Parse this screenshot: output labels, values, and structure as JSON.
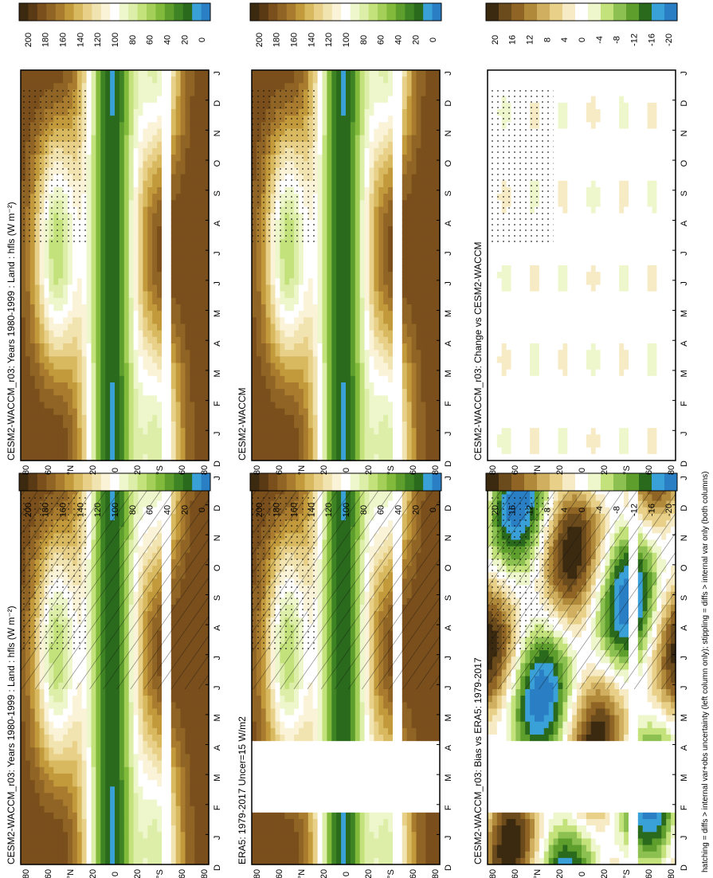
{
  "footnote": "hatching = diffs > internal var+obs uncertainty (left column only); stippling = diffs > internal var only (both columns)",
  "colors": {
    "abs_scale": [
      "#3b2a10",
      "#5a3a14",
      "#7a4f1c",
      "#8f6424",
      "#a87b2e",
      "#c29a3c",
      "#d8b960",
      "#e8d088",
      "#f2e4b0",
      "#faf3d8",
      "#ffffff",
      "#eef6cc",
      "#dceea8",
      "#c4e27c",
      "#a4d05a",
      "#82bb3c",
      "#5e9e2c",
      "#3f8424",
      "#2a6a1c",
      "#3aa0d8",
      "#2a7ec4"
    ],
    "diff_scale": [
      "#3b2a10",
      "#6b4a1c",
      "#8f6424",
      "#b08a3a",
      "#d0b060",
      "#e8d088",
      "#f6ebc4",
      "#ffffff",
      "#eef6cc",
      "#c4e27c",
      "#8cc050",
      "#5e9e2c",
      "#2a6a1c",
      "#3aa0d8",
      "#2a7ec4"
    ]
  },
  "chart_data": [
    {
      "id": "panel-left-top",
      "type": "heatmap",
      "title": "CESM2-WACCM_r03: Years 1980-1999 : Land : hfls (W m⁻²)",
      "x": [
        "D",
        "J",
        "F",
        "M",
        "A",
        "M",
        "J",
        "J",
        "A",
        "S",
        "O",
        "N",
        "D",
        "J"
      ],
      "y_ticks": [
        "80",
        "60",
        "°N",
        "20",
        "0",
        "20",
        "°S",
        "60",
        "80"
      ],
      "colorbar": {
        "ticks": [
          "0",
          "20",
          "40",
          "60",
          "80",
          "100",
          "120",
          "140",
          "160",
          "180",
          "200"
        ]
      },
      "hatched": true,
      "stippled": true
    },
    {
      "id": "panel-right-top",
      "type": "heatmap",
      "title": "CESM2-WACCM_r03: Years 1980-1999 : Land : hfls (W m⁻²)",
      "x": [
        "D",
        "J",
        "F",
        "M",
        "A",
        "M",
        "J",
        "J",
        "A",
        "S",
        "O",
        "N",
        "D",
        "J"
      ],
      "y_ticks": [
        "80",
        "60",
        "°N",
        "20",
        "0",
        "20",
        "°S",
        "60",
        "80"
      ],
      "colorbar": {
        "ticks": [
          "0",
          "20",
          "40",
          "60",
          "80",
          "100",
          "120",
          "140",
          "160",
          "180",
          "200"
        ]
      },
      "stippled": true
    },
    {
      "id": "panel-left-middle",
      "type": "heatmap",
      "title": "ERA5: 1979-2017 Uncer=15 W/m2",
      "x": [
        "D",
        "J",
        "F",
        "M",
        "A",
        "M",
        "J",
        "J",
        "A",
        "S",
        "O",
        "N",
        "D",
        "J"
      ],
      "y_ticks": [
        "80",
        "60",
        "°N",
        "20",
        "0",
        "20",
        "°S",
        "60",
        "80"
      ],
      "colorbar": {
        "ticks": [
          "0",
          "20",
          "40",
          "60",
          "80",
          "100",
          "120",
          "140",
          "160",
          "180",
          "200"
        ]
      },
      "missing_months": [
        "F",
        "M",
        "A"
      ],
      "hatched": true,
      "stippled": true
    },
    {
      "id": "panel-right-middle",
      "type": "heatmap",
      "title": "CESM2-WACCM",
      "x": [
        "D",
        "J",
        "F",
        "M",
        "A",
        "M",
        "J",
        "J",
        "A",
        "S",
        "O",
        "N",
        "D",
        "J"
      ],
      "y_ticks": [
        "80",
        "60",
        "°N",
        "20",
        "0",
        "20",
        "°S",
        "60",
        "80"
      ],
      "colorbar": {
        "ticks": [
          "0",
          "20",
          "40",
          "60",
          "80",
          "100",
          "120",
          "140",
          "160",
          "180",
          "200"
        ]
      },
      "stippled": true
    },
    {
      "id": "panel-left-bottom",
      "type": "heatmap",
      "title": "CESM2-WACCM_r03: Bias vs ERA5: 1979-2017",
      "x": [
        "D",
        "J",
        "F",
        "M",
        "A",
        "M",
        "J",
        "J",
        "A",
        "S",
        "O",
        "N",
        "D",
        "J"
      ],
      "y_ticks": [
        "80",
        "60",
        "°N",
        "20",
        "0",
        "20",
        "°S",
        "60",
        "80"
      ],
      "colorbar": {
        "ticks": [
          "-20",
          "-16",
          "-12",
          "-8",
          "-4",
          "0",
          "4",
          "8",
          "12",
          "16",
          "20"
        ]
      },
      "missing_months": [
        "F",
        "M",
        "A"
      ],
      "hatched": true,
      "stippled": true
    },
    {
      "id": "panel-right-bottom",
      "type": "heatmap",
      "title": "CESM2-WACCM_r03: Change vs CESM2-WACCM",
      "x": [
        "D",
        "J",
        "F",
        "M",
        "A",
        "M",
        "J",
        "J",
        "A",
        "S",
        "O",
        "N",
        "D",
        "J"
      ],
      "y_ticks": [
        "80",
        "60",
        "°N",
        "20",
        "0",
        "20",
        "°S",
        "60",
        "80"
      ],
      "colorbar": {
        "ticks": [
          "-20",
          "-16",
          "-12",
          "-8",
          "-4",
          "0",
          "4",
          "8",
          "12",
          "16",
          "20"
        ]
      },
      "stippled": true
    }
  ]
}
